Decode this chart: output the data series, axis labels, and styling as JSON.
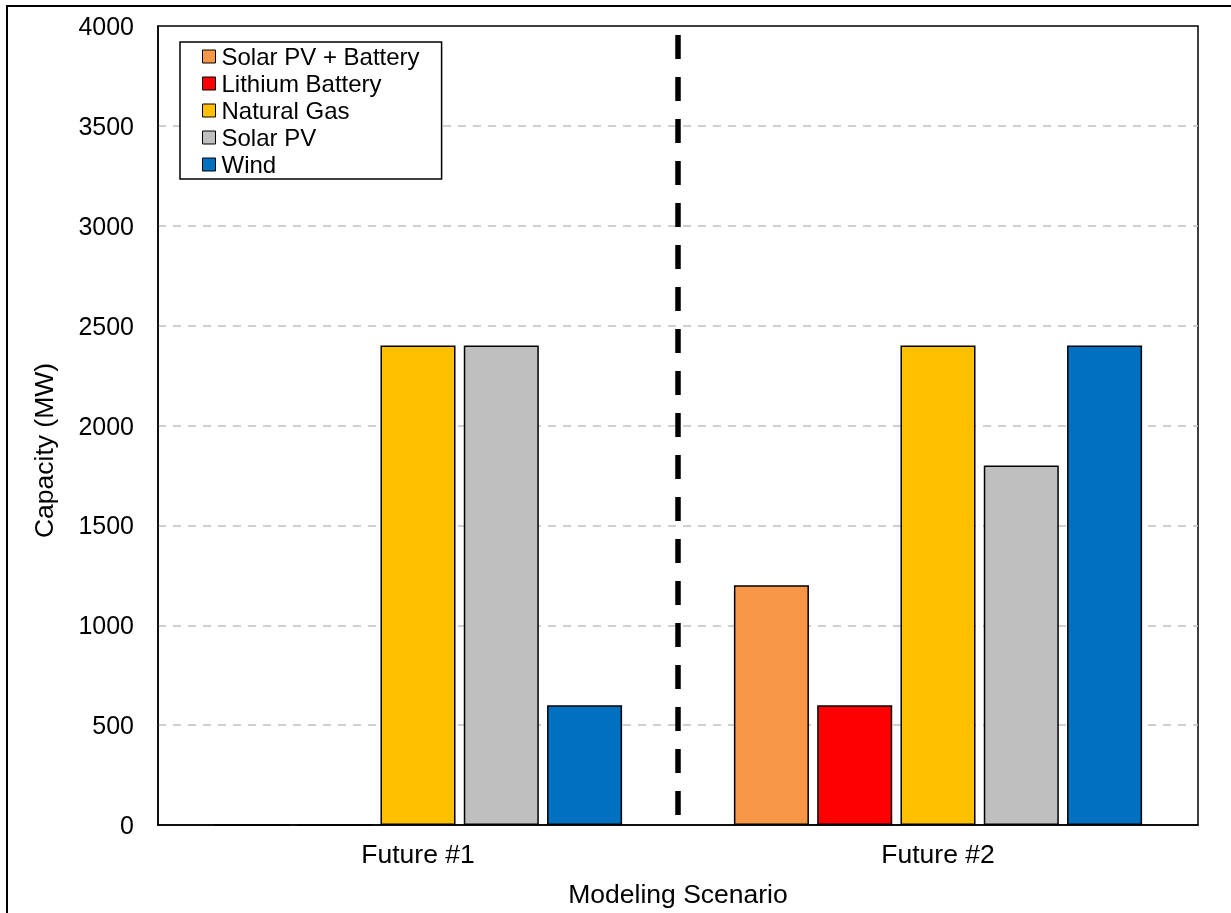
{
  "chart_data": {
    "type": "bar",
    "xlabel": "Modeling Scenario",
    "ylabel": "Capacity (MW)",
    "categories": [
      "Future #1",
      "Future #2"
    ],
    "series": [
      {
        "name": "Solar PV + Battery",
        "color": "#f79646",
        "values": [
          0,
          1200
        ]
      },
      {
        "name": "Lithium Battery",
        "color": "#ff0000",
        "values": [
          0,
          600
        ]
      },
      {
        "name": "Natural Gas",
        "color": "#ffc000",
        "values": [
          2400,
          2400
        ]
      },
      {
        "name": "Solar PV",
        "color": "#bfbfbf",
        "values": [
          2400,
          1800
        ]
      },
      {
        "name": "Wind",
        "color": "#0070c0",
        "values": [
          600,
          2400
        ]
      }
    ],
    "ylim": [
      0,
      4000
    ],
    "yticks": [
      0,
      500,
      1000,
      1500,
      2000,
      2500,
      3000,
      3500,
      4000
    ],
    "grid": "y",
    "legend": "top left"
  }
}
